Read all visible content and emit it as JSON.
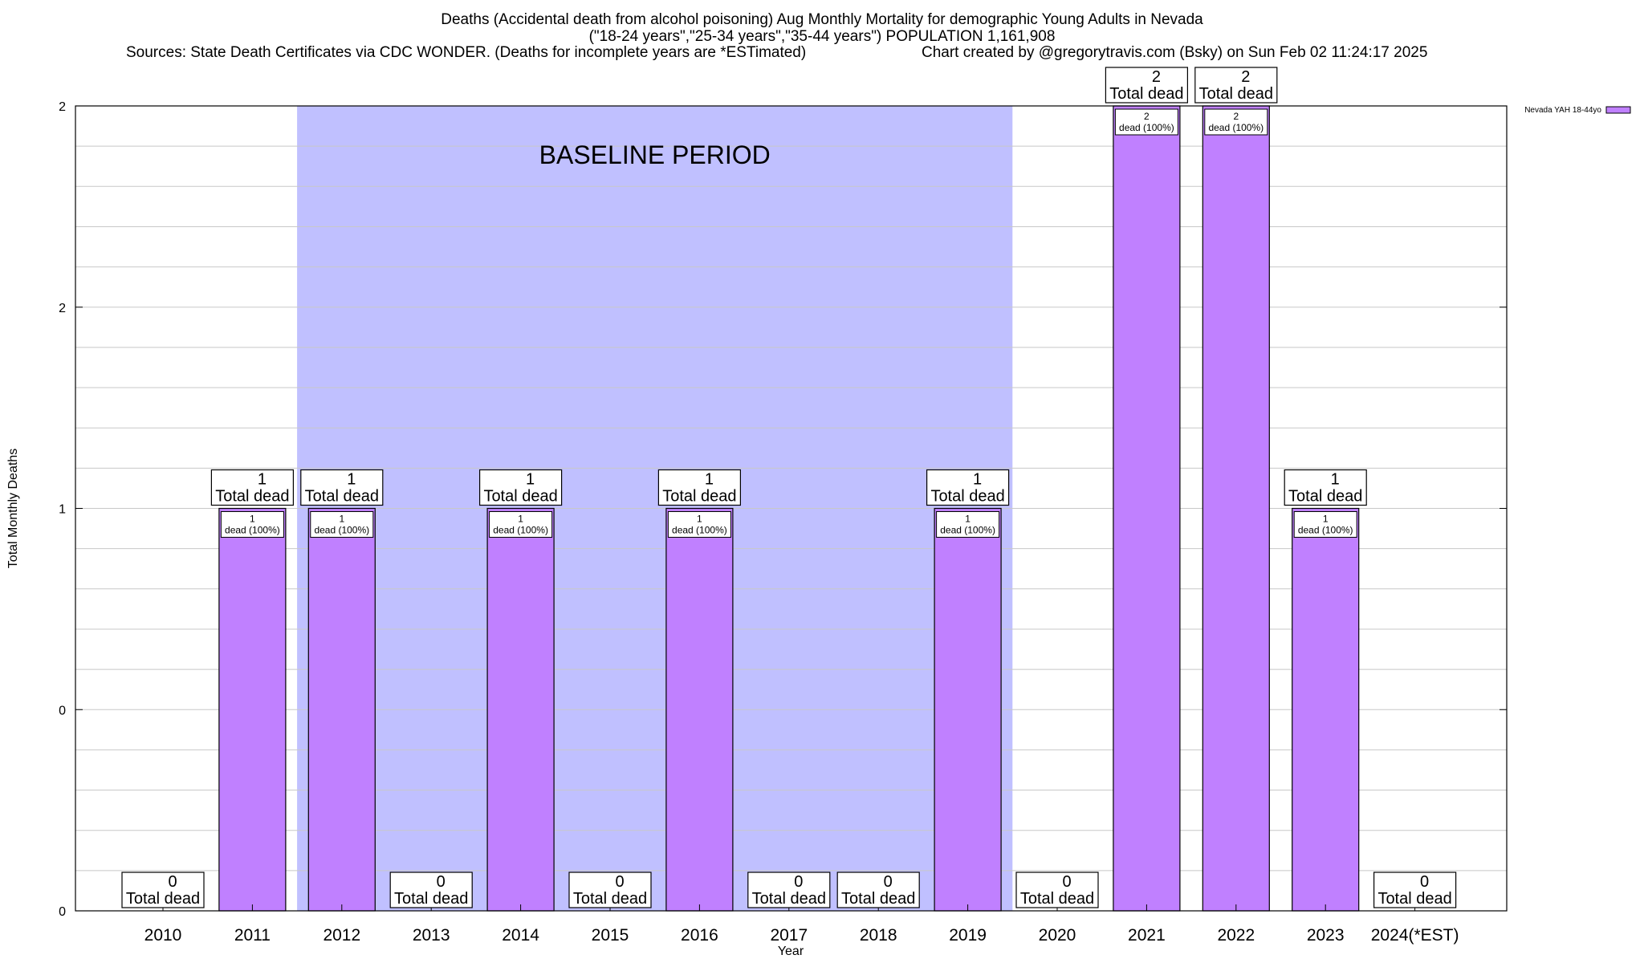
{
  "title": {
    "line1": "Deaths (Accidental death from alcohol poisoning) Aug Monthly Mortality for demographic Young Adults in Nevada",
    "line2": "(\"18-24 years\",\"25-34 years\",\"35-44 years\") POPULATION 1,161,908",
    "line3_left": "Sources: State Death Certificates via CDC WONDER. (Deaths for incomplete years are *ESTimated)",
    "line3_right": "Chart created by @gregorytravis.com (Bsky) on Sun Feb 02 11:24:17 2025"
  },
  "colors": {
    "bar": "#c080ff",
    "baseline_band": "#c0c0ff",
    "grid": "#c8c8c8"
  },
  "chart_data": {
    "type": "bar",
    "xlabel": "Year",
    "ylabel": "Total Monthly Deaths",
    "ylim": [
      0,
      2
    ],
    "yticks": [
      {
        "value": 0,
        "label": "0"
      },
      {
        "value": 0.5,
        "label": "0"
      },
      {
        "value": 1,
        "label": "1"
      },
      {
        "value": 1.5,
        "label": "2"
      },
      {
        "value": 2,
        "label": "2"
      }
    ],
    "grid": true,
    "legend_position": "top-right",
    "categories": [
      "2010",
      "2011",
      "2012",
      "2013",
      "2014",
      "2015",
      "2016",
      "2017",
      "2018",
      "2019",
      "2020",
      "2021",
      "2022",
      "2023",
      "2024(*EST)"
    ],
    "series": [
      {
        "name": "Nevada YAH 18-44yo",
        "values": [
          0,
          1,
          1,
          0,
          1,
          0,
          1,
          0,
          0,
          1,
          0,
          2,
          2,
          1,
          0
        ]
      }
    ],
    "total_labels": [
      "0\nTotal dead",
      "1\nTotal dead",
      "1\nTotal dead",
      "0\nTotal dead",
      "1\nTotal dead",
      "0\nTotal dead",
      "1\nTotal dead",
      "0\nTotal dead",
      "0\nTotal dead",
      "1\nTotal dead",
      "0\nTotal dead",
      "2\nTotal dead",
      "2\nTotal dead",
      "1\nTotal dead",
      "0\nTotal dead"
    ],
    "bar_labels": [
      "",
      "1\ndead (100%)",
      "1\ndead (100%)",
      "",
      "1\ndead (100%)",
      "",
      "1\ndead (100%)",
      "",
      "",
      "1\ndead (100%)",
      "",
      "2\ndead (100%)",
      "2\ndead (100%)",
      "1\ndead (100%)",
      ""
    ],
    "baseline": {
      "label": "BASELINE PERIOD",
      "start": "2012",
      "end": "2019"
    }
  }
}
